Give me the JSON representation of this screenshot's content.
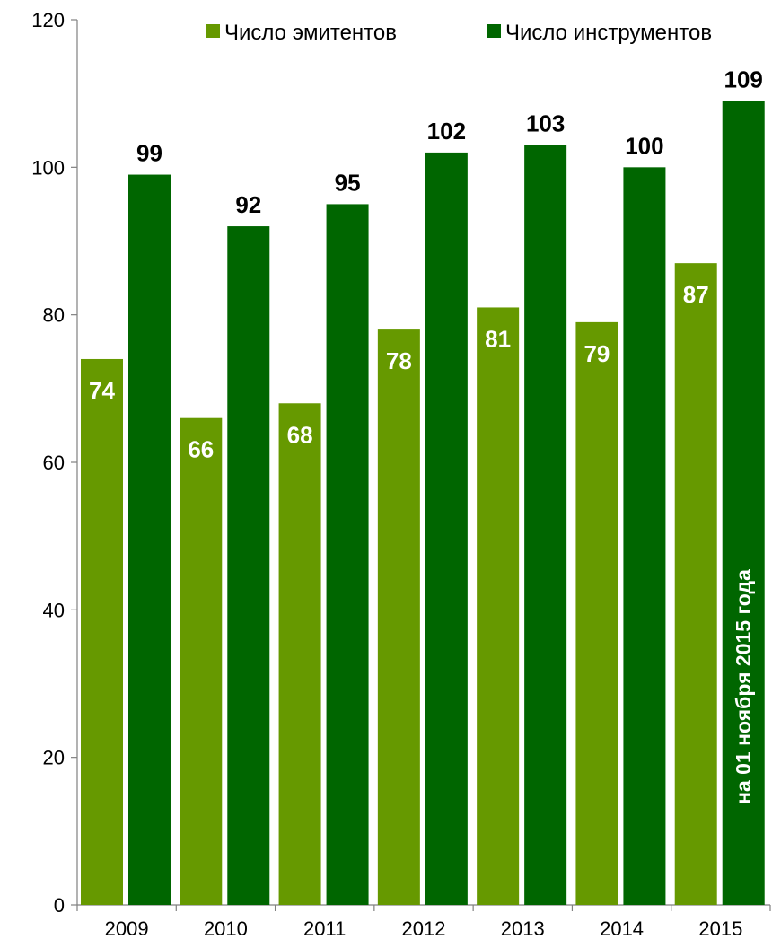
{
  "chart_data": {
    "type": "bar",
    "categories": [
      "2009",
      "2010",
      "2011",
      "2012",
      "2013",
      "2014",
      "2015"
    ],
    "series": [
      {
        "name": "Число эмитентов",
        "values": [
          74,
          66,
          68,
          78,
          81,
          79,
          87
        ],
        "color": "#669900",
        "label_position": "inside"
      },
      {
        "name": "Число инструментов",
        "values": [
          99,
          92,
          95,
          102,
          103,
          100,
          109
        ],
        "color": "#006600",
        "label_position": "outside"
      }
    ],
    "ylim": [
      0,
      120
    ],
    "yticks": [
      0,
      20,
      40,
      60,
      80,
      100,
      120
    ],
    "grid": false,
    "legend_position": "top-right",
    "annotation": "на 01 ноября 2015 года"
  }
}
